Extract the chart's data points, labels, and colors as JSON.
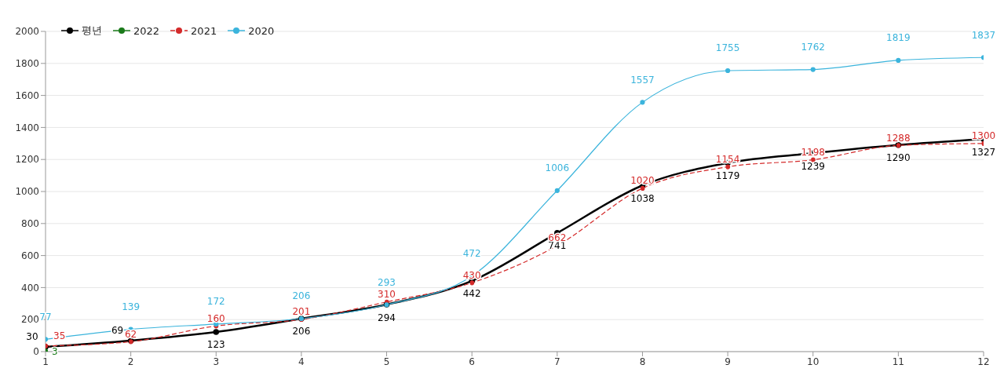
{
  "chart_data": {
    "type": "line",
    "x": [
      1,
      2,
      3,
      4,
      5,
      6,
      7,
      8,
      9,
      10,
      11,
      12
    ],
    "series": [
      {
        "name": "평년",
        "color": "#000000",
        "values": [
          30,
          69,
          123,
          206,
          294,
          442,
          741,
          1038,
          1179,
          1239,
          1290,
          1327
        ]
      },
      {
        "name": "2022",
        "color": "#1a7a1a",
        "values": [
          3,
          null,
          null,
          null,
          null,
          null,
          null,
          null,
          null,
          null,
          null,
          null
        ]
      },
      {
        "name": "2021",
        "color": "#d42a2a",
        "line_style": "dashed",
        "values": [
          35,
          62,
          160,
          201,
          310,
          430,
          662,
          1020,
          1154,
          1198,
          1288,
          1300
        ]
      },
      {
        "name": "2020",
        "color": "#3bb4dc",
        "values": [
          77,
          139,
          172,
          206,
          293,
          472,
          1006,
          1557,
          1755,
          1762,
          1819,
          1837
        ]
      }
    ],
    "xlim": [
      1,
      12
    ],
    "xticks": [
      1,
      2,
      3,
      4,
      5,
      6,
      7,
      8,
      9,
      10,
      11,
      12
    ],
    "ylim": [
      0,
      2000
    ],
    "yticks": [
      0,
      200,
      400,
      600,
      800,
      1000,
      1200,
      1400,
      1600,
      1800,
      2000
    ],
    "grid": "y",
    "legend": "top left",
    "marker": "circle",
    "line_style": "solid",
    "data_labels": true
  }
}
